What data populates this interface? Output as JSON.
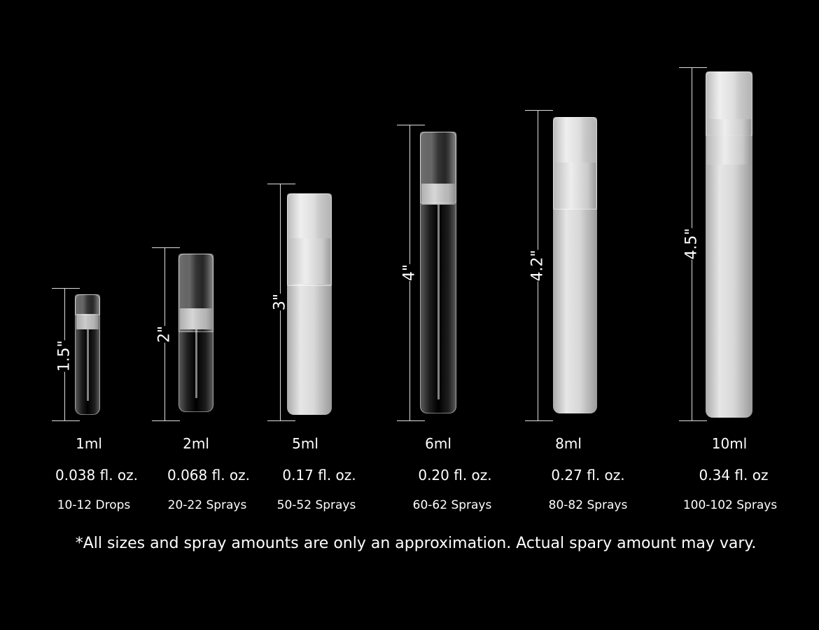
{
  "products": [
    {
      "height": "1.5\"",
      "volume": "1ml",
      "fl_oz": "0.038 fl. oz.",
      "amount": "10-12 Drops",
      "finish": "clear"
    },
    {
      "height": "2\"",
      "volume": "2ml",
      "fl_oz": "0.068 fl. oz.",
      "amount": "20-22 Sprays",
      "finish": "clear"
    },
    {
      "height": "3\"",
      "volume": "5ml",
      "fl_oz": "0.17 fl. oz.",
      "amount": "50-52 Sprays",
      "finish": "frosted"
    },
    {
      "height": "4\"",
      "volume": "6ml",
      "fl_oz": "0.20 fl. oz.",
      "amount": "60-62 Sprays",
      "finish": "clear"
    },
    {
      "height": "4.2\"",
      "volume": "8ml",
      "fl_oz": "0.27 fl. oz.",
      "amount": "80-82 Sprays",
      "finish": "frosted"
    },
    {
      "height": "4.5\"",
      "volume": "10ml",
      "fl_oz": "0.34 fl. oz",
      "amount": "100-102 Sprays",
      "finish": "frosted"
    }
  ],
  "footnote": "*All sizes and spray amounts are only an approximation. Actual spary amount may vary.",
  "colors": {
    "background": "#000000",
    "text": "#ffffff"
  }
}
